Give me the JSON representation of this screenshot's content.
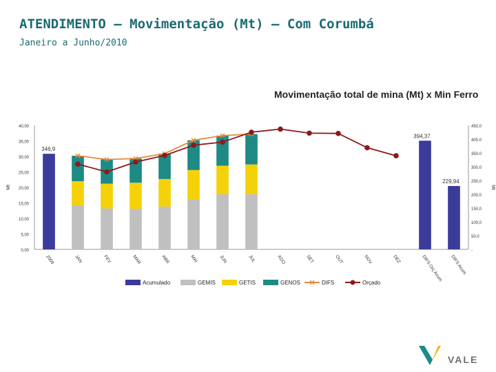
{
  "slide": {
    "title": "ATENDIMENTO – Movimentação (Mt) – Com Corumbá",
    "subtitle": "Janeiro a Junho/2010",
    "logo_text": "VALE"
  },
  "chart_data": {
    "type": "bar",
    "title": "Movimentação total de mina (Mt) x Min Ferro",
    "ylabel_left": "Mt",
    "ylabel_right": "Mt",
    "ylim_left": [
      0,
      40
    ],
    "ylim_right": [
      0,
      450
    ],
    "yticks_left": [
      "0,00",
      "5,00",
      "10,00",
      "15,00",
      "20,00",
      "25,00",
      "30,00",
      "35,00",
      "40,00"
    ],
    "yticks_right": [
      "-",
      "50,0",
      "100,0",
      "150,0",
      "200,0",
      "250,0",
      "300,0",
      "350,0",
      "400,0",
      "450,0"
    ],
    "categories": [
      "2009",
      "JAN",
      "FEV",
      "MAR",
      "ABR",
      "MAI",
      "JUN",
      "JUL",
      "AGO",
      "SET",
      "OUT",
      "NOV",
      "DEZ",
      "DIFS Orç Acum",
      "DIFS Acum"
    ],
    "legend_position": "bottom",
    "series": [
      {
        "name": "Acumulado",
        "type": "bar",
        "axis": "right",
        "color": "#3b3b9c",
        "values": [
          346.9,
          null,
          null,
          null,
          null,
          null,
          null,
          null,
          null,
          null,
          null,
          null,
          null,
          394.37,
          229.94
        ],
        "labels": [
          "346,9",
          null,
          null,
          null,
          null,
          null,
          null,
          null,
          null,
          null,
          null,
          null,
          null,
          "394,37",
          "229,94"
        ]
      },
      {
        "name": "GEMIS",
        "type": "stacked",
        "axis": "left",
        "color": "#c0c0c0",
        "values": [
          null,
          14.2,
          13.2,
          13.1,
          13.8,
          16.1,
          17.8,
          17.8,
          null,
          null,
          null,
          null,
          null,
          null,
          null
        ]
      },
      {
        "name": "GETIS",
        "type": "stacked",
        "axis": "left",
        "color": "#f5d10a",
        "values": [
          null,
          7.8,
          8.0,
          8.4,
          8.9,
          9.5,
          9.2,
          9.6,
          null,
          null,
          null,
          null,
          null,
          null,
          null
        ]
      },
      {
        "name": "GENOS",
        "type": "stacked",
        "axis": "left",
        "color": "#1d8a85",
        "values": [
          null,
          8.2,
          7.8,
          7.8,
          8.2,
          9.6,
          9.7,
          9.8,
          null,
          null,
          null,
          null,
          null,
          null,
          null
        ]
      },
      {
        "name": "DIFS",
        "type": "line",
        "axis": "left",
        "color": "#e8873a",
        "marker": "x",
        "values": [
          null,
          30.2,
          29.0,
          29.3,
          30.9,
          35.2,
          36.7,
          37.2,
          null,
          null,
          null,
          null,
          null,
          null,
          null
        ]
      },
      {
        "name": "Orçado",
        "type": "line",
        "axis": "left",
        "color": "#8b1a1a",
        "marker": "circle",
        "values": [
          null,
          27.5,
          25.0,
          28.2,
          30.3,
          33.6,
          34.6,
          37.8,
          38.8,
          37.5,
          37.4,
          32.8,
          30.2,
          null,
          null
        ]
      }
    ]
  }
}
